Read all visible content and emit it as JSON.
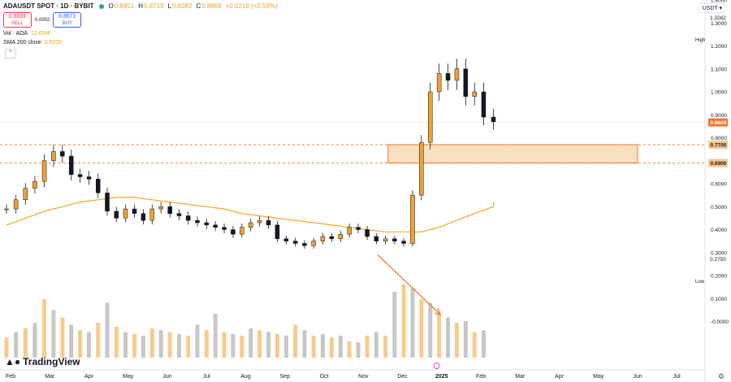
{
  "header": {
    "symbol": "ADAUSDT SPOT · 1D · BYBIT",
    "ohlc": [
      {
        "k": "O",
        "v": "0.8451"
      },
      {
        "k": "H",
        "v": "0.8713"
      },
      {
        "k": "L",
        "v": "0.8382"
      },
      {
        "k": "C",
        "v": "0.8669"
      },
      {
        "k": "",
        "v": "+0.0218 (+2.58%)"
      }
    ]
  },
  "trade": {
    "sell_price": "0.8669",
    "sell_label": "SELL",
    "spread": "0.0002",
    "buy_price": "0.8671",
    "buy_label": "BUY"
  },
  "indicators": {
    "vol_label": "Vol · ADA",
    "vol_value": "12.65M",
    "sma_label": "SMA 200 close",
    "sma_value": "0.5205"
  },
  "currency": "USDT",
  "branding": "TradingView",
  "high_label": "High",
  "high_value": "1.3262",
  "low_label": "Low",
  "low_value": "0.2750",
  "colors": {
    "up": "#f0a030",
    "down": "#131722",
    "sma": "#f5a623",
    "zone": "#f7c68a",
    "price_tag": "#f0742a"
  },
  "chart_data": {
    "type": "candlestick",
    "ylim": [
      -0.05,
      1.45
    ],
    "y_ticks": [
      "1.4000",
      "1.3000",
      "1.2000",
      "1.1000",
      "1.0000",
      "0.9000",
      "0.8000",
      "0.7000",
      "0.6000",
      "0.5000",
      "0.4000",
      "0.3000",
      "0.2000",
      "0.1000",
      "-0.0000"
    ],
    "y_values": [
      1.4,
      1.3,
      1.2,
      1.1,
      1.0,
      0.9,
      0.8,
      0.7,
      0.6,
      0.5,
      0.4,
      0.3,
      0.2,
      0.1,
      0.0
    ],
    "x_ticks": [
      "Feb",
      "Mar",
      "Apr",
      "May",
      "Jun",
      "Jul",
      "Aug",
      "Sep",
      "Oct",
      "Nov",
      "Dec",
      "2025",
      "Feb",
      "Mar",
      "Apr",
      "May",
      "Jun",
      "Jul"
    ],
    "x_tick_dates": [
      "2024-02-01",
      "2024-03-01",
      "2024-04-01",
      "2024-05-01",
      "2024-06-01",
      "2024-07-01",
      "2024-08-01",
      "2024-09-01",
      "2024-10-01",
      "2024-11-01",
      "2024-12-01",
      "2025-01-01",
      "2025-02-01",
      "2025-03-01",
      "2025-04-01",
      "2025-05-01",
      "2025-06-01",
      "2025-07-01"
    ],
    "closes_weekly": [
      0.49,
      0.53,
      0.58,
      0.61,
      0.7,
      0.74,
      0.72,
      0.64,
      0.63,
      0.62,
      0.56,
      0.48,
      0.45,
      0.49,
      0.47,
      0.44,
      0.49,
      0.5,
      0.47,
      0.46,
      0.44,
      0.43,
      0.42,
      0.41,
      0.4,
      0.38,
      0.41,
      0.43,
      0.44,
      0.42,
      0.36,
      0.35,
      0.34,
      0.33,
      0.35,
      0.37,
      0.36,
      0.38,
      0.41,
      0.4,
      0.37,
      0.35,
      0.36,
      0.35,
      0.34,
      0.55,
      0.78,
      1.0,
      1.08,
      1.05,
      1.1,
      0.98,
      1.0,
      0.89,
      0.87
    ],
    "first_week": "2024-01-29",
    "sma200": [
      0.42,
      0.45,
      0.48,
      0.5,
      0.52,
      0.53,
      0.54,
      0.54,
      0.53,
      0.52,
      0.51,
      0.5,
      0.49,
      0.47,
      0.46,
      0.45,
      0.44,
      0.43,
      0.42,
      0.41,
      0.4,
      0.39,
      0.39,
      0.39,
      0.41,
      0.44,
      0.47,
      0.5,
      0.52
    ],
    "volume_weekly_M": [
      55,
      70,
      80,
      95,
      160,
      130,
      110,
      90,
      75,
      70,
      95,
      150,
      85,
      70,
      65,
      60,
      80,
      75,
      70,
      65,
      60,
      90,
      75,
      120,
      70,
      65,
      60,
      80,
      75,
      70,
      65,
      60,
      90,
      75,
      60,
      65,
      55,
      60,
      45,
      42,
      60,
      70,
      60,
      180,
      200,
      190,
      160,
      150,
      120,
      110,
      95,
      100,
      70,
      75
    ],
    "last_price": "0.8669",
    "last_value": 0.8669,
    "level_upper": "0.7700",
    "level_upper_value": 0.77,
    "level_lower": "0.6900",
    "level_lower_value": 0.69,
    "zone_value_range": [
      0.69,
      0.77
    ],
    "zone_dates": [
      "2024-11-20",
      "2025-06-01"
    ],
    "arrow_dates": [
      "2024-11-12",
      "2024-12-31"
    ],
    "arrow_values": [
      0.29,
      0.03
    ],
    "high": 1.3262,
    "low": 0.275
  }
}
